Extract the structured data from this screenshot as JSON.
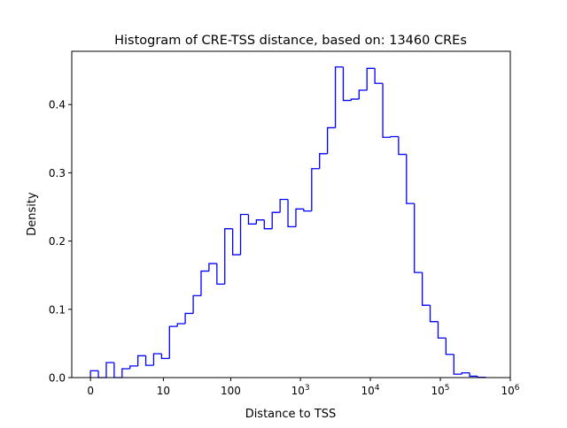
{
  "chart_data": {
    "type": "histogram",
    "title": "Histogram of CRE-TSS distance, based on: 13460 CREs",
    "xlabel": "Distance to TSS",
    "ylabel": "Density",
    "x_scale": "log10(x+1)",
    "xlim": [
      -0.46,
      1000000
    ],
    "ylim": [
      0,
      0.478
    ],
    "grid": false,
    "color": "#0000ff",
    "histtype": "step",
    "x_ticks": [
      {
        "value": 0,
        "label": "0",
        "exp": ""
      },
      {
        "value": 10,
        "label": "10",
        "exp": ""
      },
      {
        "value": 100,
        "label": "100",
        "exp": ""
      },
      {
        "value": 1000,
        "label": "10",
        "exp": "3"
      },
      {
        "value": 10000,
        "label": "10",
        "exp": "4"
      },
      {
        "value": 100000,
        "label": "10",
        "exp": "5"
      },
      {
        "value": 1000000,
        "label": "10",
        "exp": "6"
      }
    ],
    "y_ticks": [
      {
        "value": 0.0,
        "label": "0.0"
      },
      {
        "value": 0.1,
        "label": "0.1"
      },
      {
        "value": 0.2,
        "label": "0.2"
      },
      {
        "value": 0.3,
        "label": "0.3"
      },
      {
        "value": 0.4,
        "label": "0.4"
      }
    ],
    "bin_edges": [
      0,
      0.297,
      0.682,
      1.18,
      1.83,
      2.67,
      3.76,
      5.17,
      7.0,
      9.38,
      12.46,
      16.46,
      21.6,
      28.4,
      37.1,
      48.4,
      63.1,
      82.1,
      106.7,
      138.7,
      180.1,
      233.9,
      303.7,
      394.1,
      511.5,
      663.6,
      861,
      1117,
      1449,
      1879,
      2437,
      3161,
      4100,
      5317,
      6896,
      8944,
      11600,
      15045,
      19512,
      25304,
      32810,
      42560,
      55190,
      71580,
      92820,
      120400,
      156100,
      202500,
      262600,
      340600,
      441600
    ],
    "values": [
      0.01,
      0,
      0.022,
      0,
      0.013,
      0.017,
      0.032,
      0.018,
      0.035,
      0.028,
      0.075,
      0.079,
      0.094,
      0.12,
      0.156,
      0.167,
      0.137,
      0.218,
      0.18,
      0.239,
      0.225,
      0.231,
      0.218,
      0.242,
      0.261,
      0.221,
      0.247,
      0.244,
      0.306,
      0.328,
      0.366,
      0.455,
      0.406,
      0.408,
      0.421,
      0.453,
      0.431,
      0.352,
      0.353,
      0.327,
      0.255,
      0.154,
      0.106,
      0.082,
      0.058,
      0.034,
      0.005,
      0.007,
      0.002,
      0.0005
    ]
  }
}
